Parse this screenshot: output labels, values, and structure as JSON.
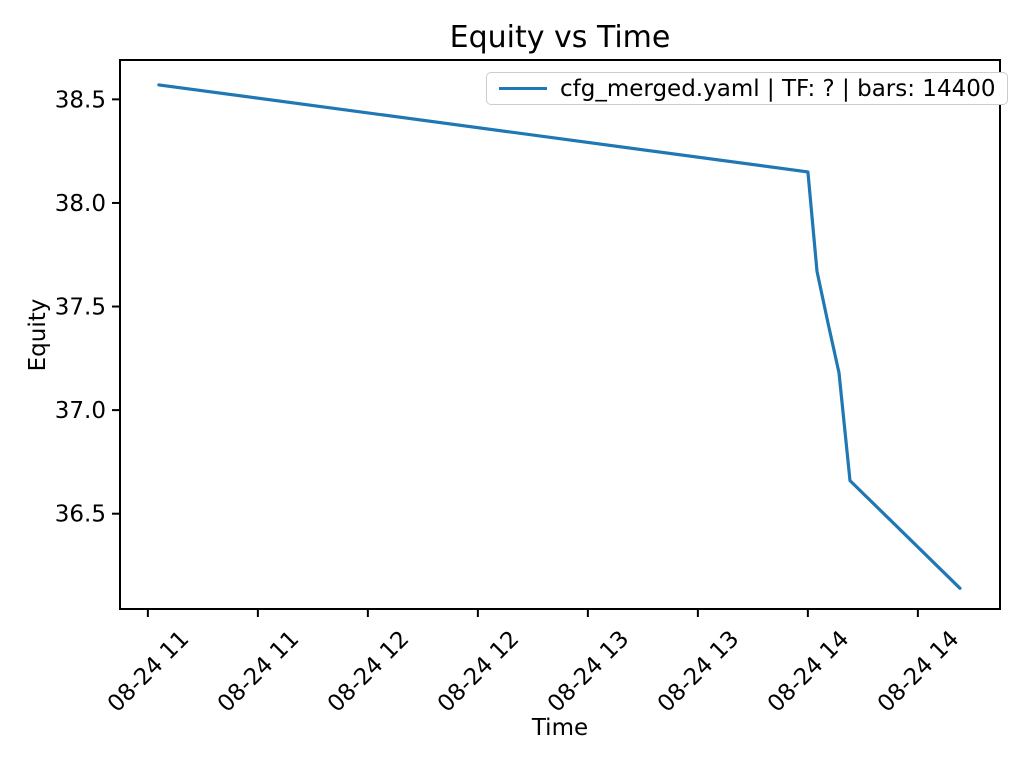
{
  "chart_data": {
    "type": "line",
    "title": "Equity vs Time",
    "xlabel": "Time",
    "ylabel": "Equity",
    "grid": false,
    "legend_position": "upper right",
    "legend_edge_color": "#cccccc",
    "x_ticks": [
      {
        "minutes": 0,
        "label": "08-24 11"
      },
      {
        "minutes": 30,
        "label": "08-24 11"
      },
      {
        "minutes": 60,
        "label": "08-24 12"
      },
      {
        "minutes": 90,
        "label": "08-24 12"
      },
      {
        "minutes": 120,
        "label": "08-24 13"
      },
      {
        "minutes": 150,
        "label": "08-24 13"
      },
      {
        "minutes": 180,
        "label": "08-24 14"
      },
      {
        "minutes": 210,
        "label": "08-24 14"
      }
    ],
    "y_ticks": [
      "36.5",
      "37.0",
      "37.5",
      "38.0",
      "38.5"
    ],
    "xlim_minutes": [
      -7.6,
      232.4
    ],
    "ylim": [
      36.04,
      38.69
    ],
    "series": [
      {
        "name": "cfg_merged.yaml | TF: ? | bars: 14400",
        "color": "#1f77b4",
        "points": [
          {
            "time": "08-24 11:03",
            "minutes": 3,
            "equity": 38.57
          },
          {
            "time": "08-24 14:00",
            "minutes": 180,
            "equity": 38.15
          },
          {
            "time": "08-24 14:03",
            "minutes": 182.5,
            "equity": 37.67
          },
          {
            "time": "08-24 14:06",
            "minutes": 185.5,
            "equity": 37.42
          },
          {
            "time": "08-24 14:09",
            "minutes": 188.5,
            "equity": 37.18
          },
          {
            "time": "08-24 14:12",
            "minutes": 191.5,
            "equity": 36.66
          },
          {
            "time": "08-24 14:42",
            "minutes": 221.5,
            "equity": 36.14
          }
        ]
      }
    ]
  }
}
